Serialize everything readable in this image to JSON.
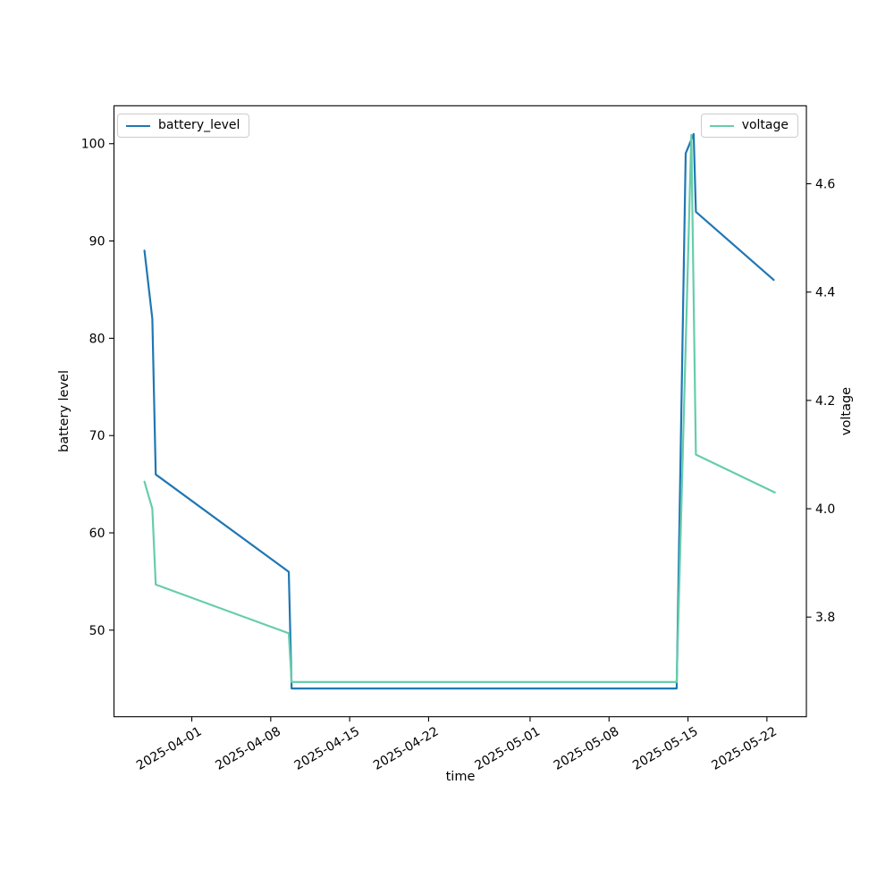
{
  "figure": {
    "background": "#ffffff"
  },
  "chart_data": {
    "type": "line",
    "title": "",
    "xlabel": "time",
    "ylabel_left": "battery level",
    "ylabel_right": "voltage",
    "grid": false,
    "x_unit": "days since 2025-04-01",
    "xlim": [
      -6.9,
      54.5
    ],
    "ylim_left": [
      41.1,
      103.9
    ],
    "ylim_right": [
      3.616,
      4.744
    ],
    "x_ticks": [
      {
        "d": 0,
        "label": "2025-04-01"
      },
      {
        "d": 7,
        "label": "2025-04-08"
      },
      {
        "d": 14,
        "label": "2025-04-15"
      },
      {
        "d": 21,
        "label": "2025-04-22"
      },
      {
        "d": 30,
        "label": "2025-05-01"
      },
      {
        "d": 37,
        "label": "2025-05-08"
      },
      {
        "d": 44,
        "label": "2025-05-15"
      },
      {
        "d": 51,
        "label": "2025-05-22"
      }
    ],
    "y_ticks_left": [
      {
        "v": 50,
        "label": "50"
      },
      {
        "v": 60,
        "label": "60"
      },
      {
        "v": 70,
        "label": "70"
      },
      {
        "v": 80,
        "label": "80"
      },
      {
        "v": 90,
        "label": "90"
      },
      {
        "v": 100,
        "label": "100"
      }
    ],
    "y_ticks_right": [
      {
        "v": 3.8,
        "label": "3.8"
      },
      {
        "v": 4.0,
        "label": "4.0"
      },
      {
        "v": 4.2,
        "label": "4.2"
      },
      {
        "v": 4.4,
        "label": "4.4"
      },
      {
        "v": 4.6,
        "label": "4.6"
      }
    ],
    "series": [
      {
        "name": "battery_level",
        "axis": "left",
        "color": "#1f77b4",
        "points": [
          [
            -4.2,
            89
          ],
          [
            -3.5,
            82
          ],
          [
            -3.2,
            66
          ],
          [
            8.6,
            56
          ],
          [
            8.85,
            44
          ],
          [
            43.0,
            44
          ],
          [
            43.8,
            99
          ],
          [
            44.5,
            101
          ],
          [
            44.7,
            93
          ],
          [
            51.6,
            86
          ]
        ]
      },
      {
        "name": "voltage",
        "axis": "right",
        "color": "#66cdaa",
        "points": [
          [
            -4.2,
            4.05
          ],
          [
            -3.5,
            4.0
          ],
          [
            -3.2,
            3.86
          ],
          [
            8.6,
            3.77
          ],
          [
            8.85,
            3.68
          ],
          [
            43.0,
            3.68
          ],
          [
            44.3,
            4.69
          ],
          [
            44.7,
            4.1
          ],
          [
            51.7,
            4.03
          ]
        ]
      }
    ],
    "legends": [
      {
        "label": "battery_level",
        "position": "upper-left",
        "color": "#1f77b4"
      },
      {
        "label": "voltage",
        "position": "upper-right",
        "color": "#66cdaa"
      }
    ]
  }
}
